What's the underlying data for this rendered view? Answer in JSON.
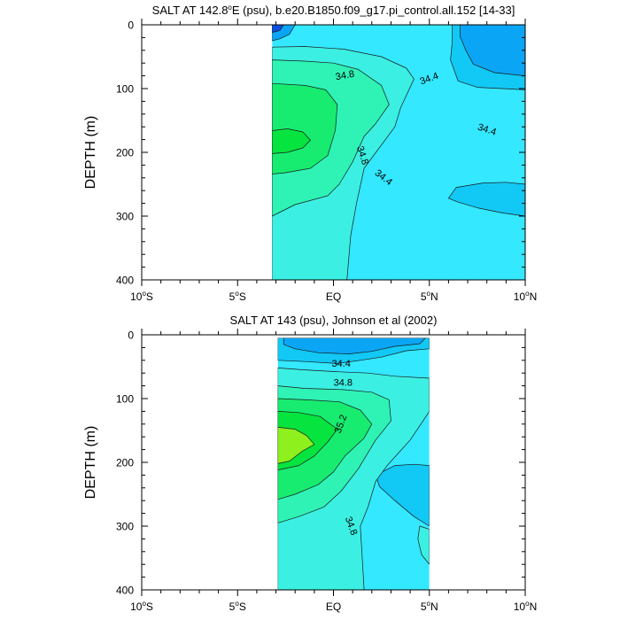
{
  "chart_data": [
    {
      "type": "contour",
      "title": "SALT AT 142.8°E (psu), b.e20.B1850.f09_g17.pi_control.all.152 [14-33]",
      "title_main": "SALT AT 142.8",
      "title_sup": "o",
      "title_rest": "E (psu), b.e20.B1850.f09_g17.pi_control.all.152 [14-33]",
      "ylabel": "DEPTH (m)",
      "xlim": [
        -10,
        10
      ],
      "ylim": [
        400,
        0
      ],
      "y_inverted": true,
      "data_extent_x": [
        -3.2,
        10
      ],
      "yticks": [
        0,
        100,
        200,
        300,
        400
      ],
      "ytick_labels": [
        "0",
        "100",
        "200",
        "300",
        "400"
      ],
      "xticks": [
        -10,
        -5,
        0,
        5,
        10
      ],
      "xtick_labels": [
        {
          "num": "10",
          "sup": "o",
          "rest": "S"
        },
        {
          "num": "5",
          "sup": "o",
          "rest": "S"
        },
        {
          "num": "EQ",
          "sup": "",
          "rest": ""
        },
        {
          "num": "5",
          "sup": "o",
          "rest": "N"
        },
        {
          "num": "10",
          "sup": "o",
          "rest": "N"
        }
      ],
      "contour_labels": [
        {
          "text": "34.8",
          "x": 0.6,
          "y": 80,
          "angle": 10
        },
        {
          "text": "34.4",
          "x": 5.0,
          "y": 85,
          "angle": 20
        },
        {
          "text": "34.4",
          "x": 8.0,
          "y": 165,
          "angle": -18
        },
        {
          "text": "34.8",
          "x": 1.5,
          "y": 205,
          "angle": -72
        },
        {
          "text": "34.4",
          "x": 2.6,
          "y": 240,
          "angle": -38
        }
      ],
      "regions": [
        {
          "level": 34.6,
          "color": "#33e8ff",
          "points": [
            [
              -3.2,
              0
            ],
            [
              10,
              0
            ],
            [
              10,
              400
            ],
            [
              -3.2,
              400
            ]
          ]
        },
        {
          "level": 34.4,
          "color": "#12c8f5",
          "points": [
            [
              6.2,
              0
            ],
            [
              10,
              0
            ],
            [
              10,
              102
            ],
            [
              8.8,
              100
            ],
            [
              7.5,
              98
            ],
            [
              6.5,
              88
            ],
            [
              6.1,
              55
            ],
            [
              6.2,
              25
            ]
          ]
        },
        {
          "level": 34.4,
          "color": "#12c8f5",
          "points": [
            [
              6.4,
              255
            ],
            [
              7.8,
              248
            ],
            [
              9.0,
              247
            ],
            [
              10,
              250
            ],
            [
              10,
              300
            ],
            [
              8.8,
              295
            ],
            [
              7.5,
              287
            ],
            [
              6.5,
              278
            ],
            [
              6.0,
              272
            ]
          ]
        },
        {
          "level": 34.2,
          "color": "#0aa6f5",
          "points": [
            [
              6.6,
              0
            ],
            [
              10,
              0
            ],
            [
              10,
              80
            ],
            [
              8.4,
              75
            ],
            [
              7.3,
              62
            ],
            [
              6.9,
              40
            ],
            [
              6.6,
              18
            ]
          ]
        },
        {
          "level": 34.6,
          "color": "#3bf0e2",
          "points": [
            [
              -3.2,
              35
            ],
            [
              -1.5,
              34
            ],
            [
              0.5,
              38
            ],
            [
              2.5,
              50
            ],
            [
              3.8,
              68
            ],
            [
              4.2,
              85
            ],
            [
              3.5,
              130
            ],
            [
              3.2,
              160
            ],
            [
              1.6,
              225
            ],
            [
              1.2,
              280
            ],
            [
              0.9,
              330
            ],
            [
              0.7,
              400
            ],
            [
              -3.2,
              400
            ]
          ]
        },
        {
          "level": 34.8,
          "color": "#2ef3b5",
          "points": [
            [
              -3.2,
              55
            ],
            [
              -1.5,
              57
            ],
            [
              0,
              60
            ],
            [
              1.3,
              70
            ],
            [
              2.5,
              95
            ],
            [
              2.9,
              125
            ],
            [
              2.2,
              155
            ],
            [
              1.6,
              175
            ],
            [
              1.0,
              215
            ],
            [
              0.3,
              250
            ],
            [
              -0.3,
              268
            ],
            [
              -2.0,
              282
            ],
            [
              -3.2,
              300
            ]
          ]
        },
        {
          "level": 35.0,
          "color": "#17ec70",
          "points": [
            [
              -3.2,
              92
            ],
            [
              -1.5,
              95
            ],
            [
              -0.4,
              102
            ],
            [
              0.2,
              125
            ],
            [
              0.1,
              165
            ],
            [
              -0.3,
              205
            ],
            [
              -1.2,
              225
            ],
            [
              -2.5,
              232
            ],
            [
              -3.2,
              234
            ]
          ]
        },
        {
          "level": 35.2,
          "color": "#06e43f",
          "points": [
            [
              -3.2,
              166
            ],
            [
              -2.4,
              163
            ],
            [
              -1.6,
              168
            ],
            [
              -1.2,
              181
            ],
            [
              -1.6,
              193
            ],
            [
              -2.4,
              200
            ],
            [
              -3.2,
              202
            ]
          ]
        },
        {
          "level": 34.2,
          "color": "#0aa6f5",
          "points": [
            [
              -3.2,
              0
            ],
            [
              -2.0,
              0
            ],
            [
              -2.3,
              15
            ],
            [
              -2.8,
              22
            ],
            [
              -3.2,
              25
            ]
          ]
        },
        {
          "level": 33.8,
          "color": "#0a4fe0",
          "points": [
            [
              -3.2,
              0
            ],
            [
              -2.6,
              0
            ],
            [
              -2.8,
              9
            ],
            [
              -3.2,
              12
            ]
          ]
        }
      ]
    },
    {
      "type": "contour",
      "title": "SALT AT 143 (psu), Johnson et al (2002)",
      "ylabel": "DEPTH (m)",
      "xlim": [
        -10,
        10
      ],
      "ylim": [
        400,
        0
      ],
      "y_inverted": true,
      "data_extent_x": [
        -2.9,
        5
      ],
      "yticks": [
        0,
        100,
        200,
        300,
        400
      ],
      "ytick_labels": [
        "0",
        "100",
        "200",
        "300",
        "400"
      ],
      "xticks": [
        -10,
        -5,
        0,
        5,
        10
      ],
      "xtick_labels": [
        {
          "num": "10",
          "sup": "o",
          "rest": "S"
        },
        {
          "num": "5",
          "sup": "o",
          "rest": "S"
        },
        {
          "num": "EQ",
          "sup": "",
          "rest": ""
        },
        {
          "num": "5",
          "sup": "o",
          "rest": "N"
        },
        {
          "num": "10",
          "sup": "o",
          "rest": "N"
        }
      ],
      "contour_labels": [
        {
          "text": "34.4",
          "x": 0.4,
          "y": 46,
          "angle": 0
        },
        {
          "text": "34.8",
          "x": 0.5,
          "y": 76,
          "angle": 0
        },
        {
          "text": "35.2",
          "x": 0.4,
          "y": 140,
          "angle": 70
        },
        {
          "text": "34.8",
          "x": 0.9,
          "y": 300,
          "angle": -70
        }
      ],
      "regions": [
        {
          "level": 34.6,
          "color": "#33e8ff",
          "points": [
            [
              -2.9,
              5
            ],
            [
              5,
              5
            ],
            [
              5,
              400
            ],
            [
              -2.9,
              400
            ]
          ]
        },
        {
          "level": 34.4,
          "color": "#12c8f5",
          "points": [
            [
              -2.9,
              5
            ],
            [
              5,
              5
            ],
            [
              5,
              22
            ],
            [
              3.8,
              25
            ],
            [
              2.5,
              35
            ],
            [
              1.4,
              40
            ],
            [
              0.2,
              45
            ],
            [
              -1.5,
              42
            ],
            [
              -2.9,
              40
            ]
          ]
        },
        {
          "level": 34.2,
          "color": "#0aa6f5",
          "points": [
            [
              -2.6,
              5
            ],
            [
              4.8,
              5
            ],
            [
              4.5,
              14
            ],
            [
              3.2,
              18
            ],
            [
              2.0,
              26
            ],
            [
              0.8,
              30
            ],
            [
              -0.8,
              28
            ],
            [
              -2.0,
              22
            ],
            [
              -2.6,
              15
            ]
          ]
        },
        {
          "level": 34.4,
          "color": "#12c8f5",
          "points": [
            [
              2.2,
              220
            ],
            [
              3.2,
              205
            ],
            [
              4.2,
              203
            ],
            [
              5,
              205
            ],
            [
              5,
              300
            ],
            [
              4.2,
              285
            ],
            [
              3.2,
              260
            ],
            [
              2.4,
              238
            ]
          ]
        },
        {
          "level": 34.6,
          "color": "#3bf0e2",
          "points": [
            [
              -2.9,
              52
            ],
            [
              -1.5,
              55
            ],
            [
              0.3,
              58
            ],
            [
              1.8,
              60
            ],
            [
              3.2,
              65
            ],
            [
              5,
              68
            ],
            [
              5,
              120
            ],
            [
              4.0,
              165
            ],
            [
              2.8,
              205
            ],
            [
              2.2,
              230
            ],
            [
              1.8,
              270
            ],
            [
              1.4,
              300
            ],
            [
              1.6,
              400
            ],
            [
              -2.9,
              400
            ]
          ]
        },
        {
          "level": 34.6,
          "color": "#3bf0e2",
          "points": [
            [
              4.5,
              300
            ],
            [
              5,
              305
            ],
            [
              5,
              360
            ],
            [
              4.6,
              345
            ],
            [
              4.4,
              320
            ]
          ]
        },
        {
          "level": 34.8,
          "color": "#2ef3b5",
          "points": [
            [
              -2.9,
              80
            ],
            [
              -1.5,
              84
            ],
            [
              0.5,
              86
            ],
            [
              2.0,
              90
            ],
            [
              2.9,
              102
            ],
            [
              3.0,
              135
            ],
            [
              2.2,
              165
            ],
            [
              1.3,
              210
            ],
            [
              0.4,
              245
            ],
            [
              -0.5,
              270
            ],
            [
              -1.8,
              285
            ],
            [
              -2.9,
              295
            ]
          ]
        },
        {
          "level": 35.0,
          "color": "#17ec70",
          "points": [
            [
              -2.9,
              100
            ],
            [
              -1.4,
              102
            ],
            [
              0.3,
              105
            ],
            [
              1.4,
              118
            ],
            [
              2.0,
              140
            ],
            [
              1.6,
              162
            ],
            [
              0.6,
              190
            ],
            [
              0.0,
              215
            ],
            [
              -0.8,
              235
            ],
            [
              -2.0,
              250
            ],
            [
              -2.9,
              258
            ]
          ]
        },
        {
          "level": 35.2,
          "color": "#06e43f",
          "points": [
            [
              -2.9,
              120
            ],
            [
              -1.8,
              122
            ],
            [
              -0.7,
              128
            ],
            [
              0.2,
              148
            ],
            [
              -0.3,
              168
            ],
            [
              -1.0,
              190
            ],
            [
              -1.8,
              205
            ],
            [
              -2.9,
              212
            ]
          ]
        },
        {
          "level": 35.4,
          "color": "#8ef01c",
          "points": [
            [
              -2.9,
              145
            ],
            [
              -2.0,
              148
            ],
            [
              -1.4,
              158
            ],
            [
              -1.0,
              172
            ],
            [
              -1.6,
              182
            ],
            [
              -2.3,
              198
            ],
            [
              -2.9,
              202
            ]
          ]
        }
      ]
    }
  ]
}
